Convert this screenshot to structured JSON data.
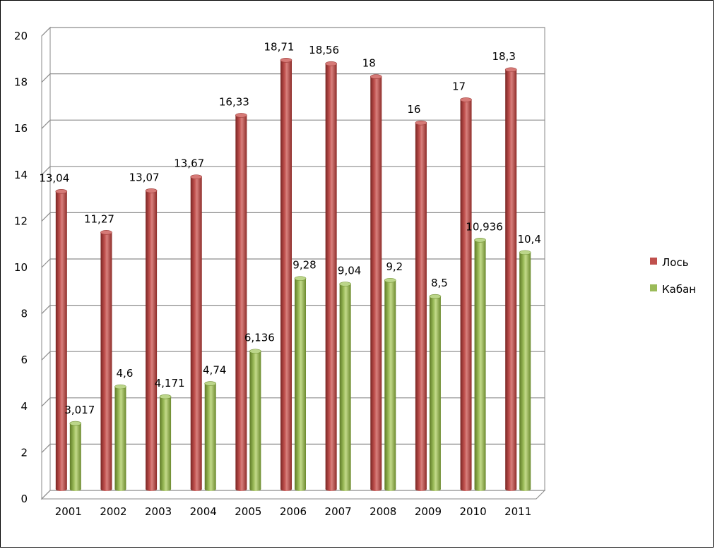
{
  "chart_data": {
    "type": "bar",
    "style": "3d-cylinder",
    "categories": [
      "2001",
      "2002",
      "2003",
      "2004",
      "2005",
      "2006",
      "2007",
      "2008",
      "2009",
      "2010",
      "2011"
    ],
    "series": [
      {
        "name": "Лось",
        "color": "#c0504d",
        "values": [
          13.04,
          11.27,
          13.07,
          13.67,
          16.33,
          18.71,
          18.56,
          18,
          16,
          17,
          18.3
        ],
        "labels": [
          "13,04",
          "11,27",
          "13,07",
          "13,67",
          "16,33",
          "18,71",
          "18,56",
          "18",
          "16",
          "17",
          "18,3"
        ]
      },
      {
        "name": "Кабан",
        "color": "#9bbb59",
        "values": [
          3.017,
          4.6,
          4.171,
          4.74,
          6.136,
          9.28,
          9.04,
          9.2,
          8.5,
          10.936,
          10.4
        ],
        "labels": [
          "3,017",
          "4,6",
          "4,171",
          "4,74",
          "6,136",
          "9,28",
          "9,04",
          "9,2",
          "8,5",
          "10,936",
          "10,4"
        ]
      }
    ],
    "ylim": [
      0,
      20
    ],
    "yticks": [
      0,
      2,
      4,
      6,
      8,
      10,
      12,
      14,
      16,
      18,
      20
    ],
    "title": "",
    "xlabel": "",
    "ylabel": "",
    "grid": true,
    "legend_position": "right"
  }
}
